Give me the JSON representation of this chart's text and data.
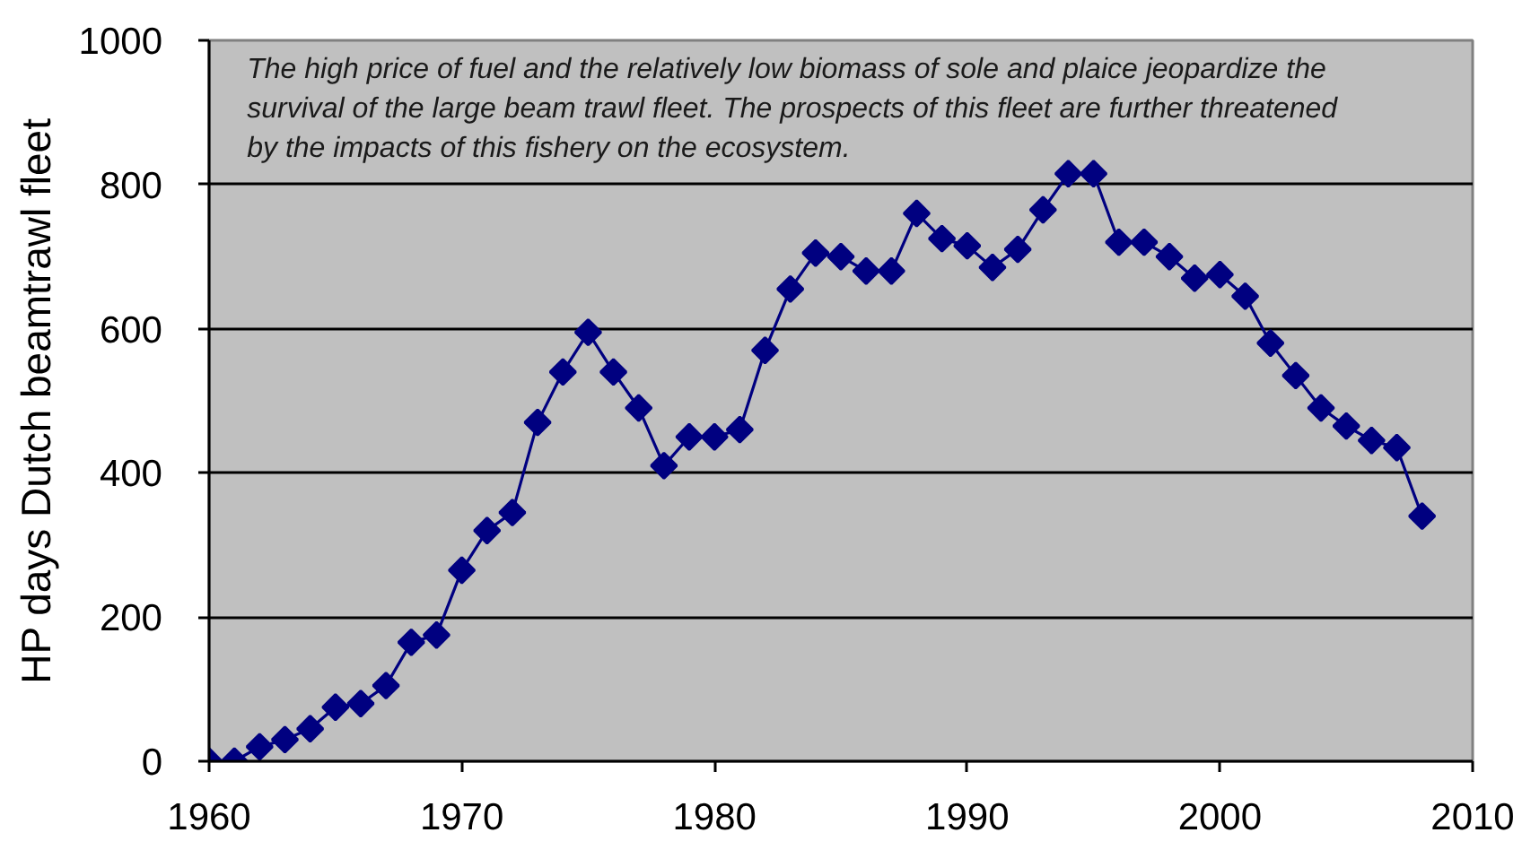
{
  "chart_data": {
    "type": "line",
    "ylabel": "HP days Dutch beamtrawl fleet",
    "annotations": [
      "The high price of fuel and the relatively low biomass of sole and plaice jeopardize the survival of the large beam trawl fleet. The prospects of this fleet are further threatened by the impacts of this fishery on the ecosystem."
    ],
    "x": [
      1960,
      1961,
      1962,
      1963,
      1964,
      1965,
      1966,
      1967,
      1968,
      1969,
      1970,
      1971,
      1972,
      1973,
      1974,
      1975,
      1976,
      1977,
      1978,
      1979,
      1980,
      1981,
      1982,
      1983,
      1984,
      1985,
      1986,
      1987,
      1988,
      1989,
      1990,
      1991,
      1992,
      1993,
      1994,
      1995,
      1996,
      1997,
      1998,
      1999,
      2000,
      2001,
      2002,
      2003,
      2004,
      2005,
      2006,
      2007,
      2008
    ],
    "series": [
      {
        "color": "#000080",
        "values": [
          0,
          0,
          20,
          30,
          45,
          75,
          80,
          105,
          165,
          175,
          265,
          320,
          345,
          470,
          540,
          595,
          540,
          490,
          410,
          450,
          450,
          460,
          570,
          655,
          705,
          700,
          680,
          680,
          760,
          725,
          715,
          685,
          710,
          765,
          815,
          815,
          720,
          720,
          700,
          670,
          675,
          645,
          580,
          535,
          490,
          465,
          445,
          435,
          340
        ]
      }
    ],
    "xlim": [
      1960,
      2010
    ],
    "xticks": [
      1960,
      1970,
      1980,
      1990,
      2000,
      2010
    ],
    "ylim": [
      0,
      1000
    ],
    "yticks": [
      0,
      200,
      400,
      600,
      800,
      1000
    ],
    "grid": "y",
    "marker": "diamond",
    "line_style": "solid"
  }
}
